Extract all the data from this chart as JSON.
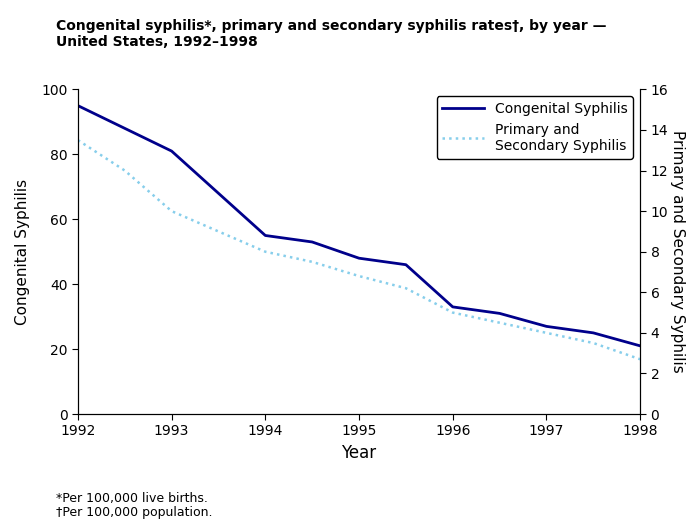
{
  "title": "Congenital syphilis*, primary and secondary syphilis rates†, by year —\nUnited States, 1992–1998",
  "years": [
    1992,
    1992.5,
    1993,
    1993.5,
    1994,
    1994.5,
    1995,
    1995.5,
    1996,
    1996.25,
    1996.5,
    1997,
    1997.5,
    1998
  ],
  "congenital": [
    95,
    88,
    81,
    68,
    55,
    53,
    48,
    46,
    33,
    32,
    31,
    27,
    25,
    21
  ],
  "primary_secondary_years": [
    1992,
    1992.5,
    1993,
    1993.5,
    1994,
    1994.5,
    1995,
    1995.5,
    1996,
    1996.5,
    1997,
    1997.5,
    1998
  ],
  "primary_secondary": [
    13.5,
    12.0,
    10.0,
    9.0,
    8.0,
    7.5,
    6.8,
    6.2,
    5.0,
    4.5,
    4.0,
    3.5,
    2.7
  ],
  "ylabel_left": "Congenital Syphilis",
  "ylabel_right": "Primary and Secondary Syphilis",
  "xlabel": "Year",
  "ylim_left": [
    0,
    100
  ],
  "ylim_right": [
    0,
    16
  ],
  "yticks_left": [
    0,
    20,
    40,
    60,
    80,
    100
  ],
  "yticks_right": [
    0,
    2,
    4,
    6,
    8,
    10,
    12,
    14,
    16
  ],
  "xticks": [
    1992,
    1993,
    1994,
    1995,
    1996,
    1997,
    1998
  ],
  "congenital_color": "#00008B",
  "primary_secondary_color": "#87CEEB",
  "footnote1": "*Per 100,000 live births.",
  "footnote2": "†Per 100,000 population.",
  "legend_congenital": "Congenital Syphilis",
  "legend_primary": "Primary and\nSecondary Syphilis"
}
